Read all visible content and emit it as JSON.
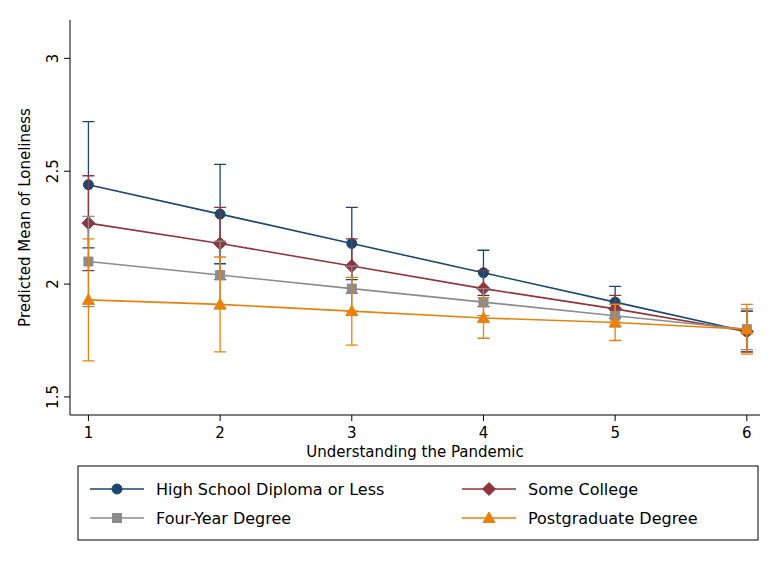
{
  "chart_data": {
    "type": "line",
    "x_label": "Understanding the Pandemic",
    "y_label": "Predicted Mean of Loneliness",
    "x": [
      1,
      2,
      3,
      4,
      5,
      6
    ],
    "xlim": [
      0.86,
      6.1
    ],
    "xticks": [
      1,
      2,
      3,
      4,
      5,
      6
    ],
    "ylim": [
      1.42,
      3.17
    ],
    "yticks": [
      1.5,
      2,
      2.5,
      3
    ],
    "grid": false,
    "legend": "bottom",
    "series": [
      {
        "name": "High School Diploma or Less",
        "color": "#1a476f",
        "marker": "circle",
        "values": [
          2.44,
          2.31,
          2.18,
          2.05,
          1.92,
          1.79
        ],
        "errors": [
          0.28,
          0.22,
          0.16,
          0.1,
          0.07,
          0.09
        ]
      },
      {
        "name": "Some College",
        "color": "#90353b",
        "marker": "diamond",
        "values": [
          2.27,
          2.18,
          2.08,
          1.98,
          1.89,
          1.79
        ],
        "errors": [
          0.21,
          0.16,
          0.12,
          0.08,
          0.06,
          0.09
        ]
      },
      {
        "name": "Four-Year Degree",
        "color": "#8c8c8c",
        "marker": "square",
        "values": [
          2.1,
          2.04,
          1.98,
          1.92,
          1.86,
          1.8
        ],
        "errors": [
          0.2,
          0.15,
          0.1,
          0.06,
          0.05,
          0.09
        ]
      },
      {
        "name": "Postgraduate Degree",
        "color": "#e8820c",
        "marker": "triangle",
        "values": [
          1.93,
          1.91,
          1.88,
          1.85,
          1.83,
          1.8
        ],
        "errors": [
          0.27,
          0.21,
          0.15,
          0.09,
          0.08,
          0.11
        ]
      }
    ]
  }
}
